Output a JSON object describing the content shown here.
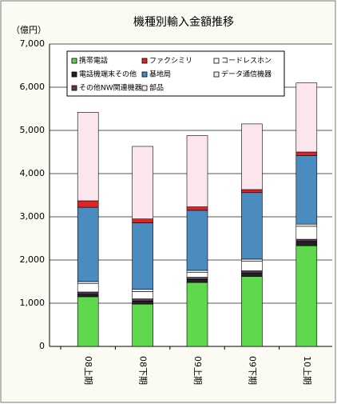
{
  "chart_data": {
    "type": "stacked_bar",
    "title": "機種別輸入金額推移",
    "y_label": "（億円）",
    "categories": [
      "08上期",
      "08下期",
      "09上期",
      "09下期",
      "10上期"
    ],
    "series": [
      {
        "name": "携帯電話",
        "color": "#5fd84e",
        "values": [
          1150,
          980,
          1480,
          1620,
          2330
        ]
      },
      {
        "name": "電話機端末その他",
        "color": "#222222",
        "values": [
          60,
          70,
          70,
          80,
          100
        ]
      },
      {
        "name": "その他NW関連機器",
        "color": "#5a3a5a",
        "values": [
          50,
          50,
          50,
          50,
          50
        ]
      },
      {
        "name": "コードレスホン",
        "color": "#ffffff",
        "values": [
          190,
          170,
          110,
          220,
          300
        ]
      },
      {
        "name": "データ通信機器",
        "color": "#eeeeee",
        "values": [
          50,
          50,
          50,
          50,
          50
        ]
      },
      {
        "name": "基地局",
        "color": "#4a8cc0",
        "values": [
          1720,
          1540,
          1390,
          1540,
          1590
        ]
      },
      {
        "name": "ファクシミリ",
        "color": "#e02424",
        "values": [
          150,
          90,
          80,
          70,
          80
        ]
      },
      {
        "name": "部品",
        "color": "#fbe6ee",
        "values": [
          2050,
          1680,
          1650,
          1520,
          1600
        ]
      }
    ],
    "ylim": [
      0,
      7000
    ],
    "yticks": [
      0,
      {
        "value": 1000,
        "label": "1,000"
      },
      {
        "value": 2000,
        "label": "2,000"
      },
      {
        "value": 3000,
        "label": "3,000"
      },
      {
        "value": 4000,
        "label": "4,000"
      },
      {
        "value": 5000,
        "label": "5,000"
      },
      {
        "value": 6000,
        "label": "6,000"
      },
      {
        "value": 7000,
        "label": "7,000"
      }
    ],
    "grid": true
  }
}
